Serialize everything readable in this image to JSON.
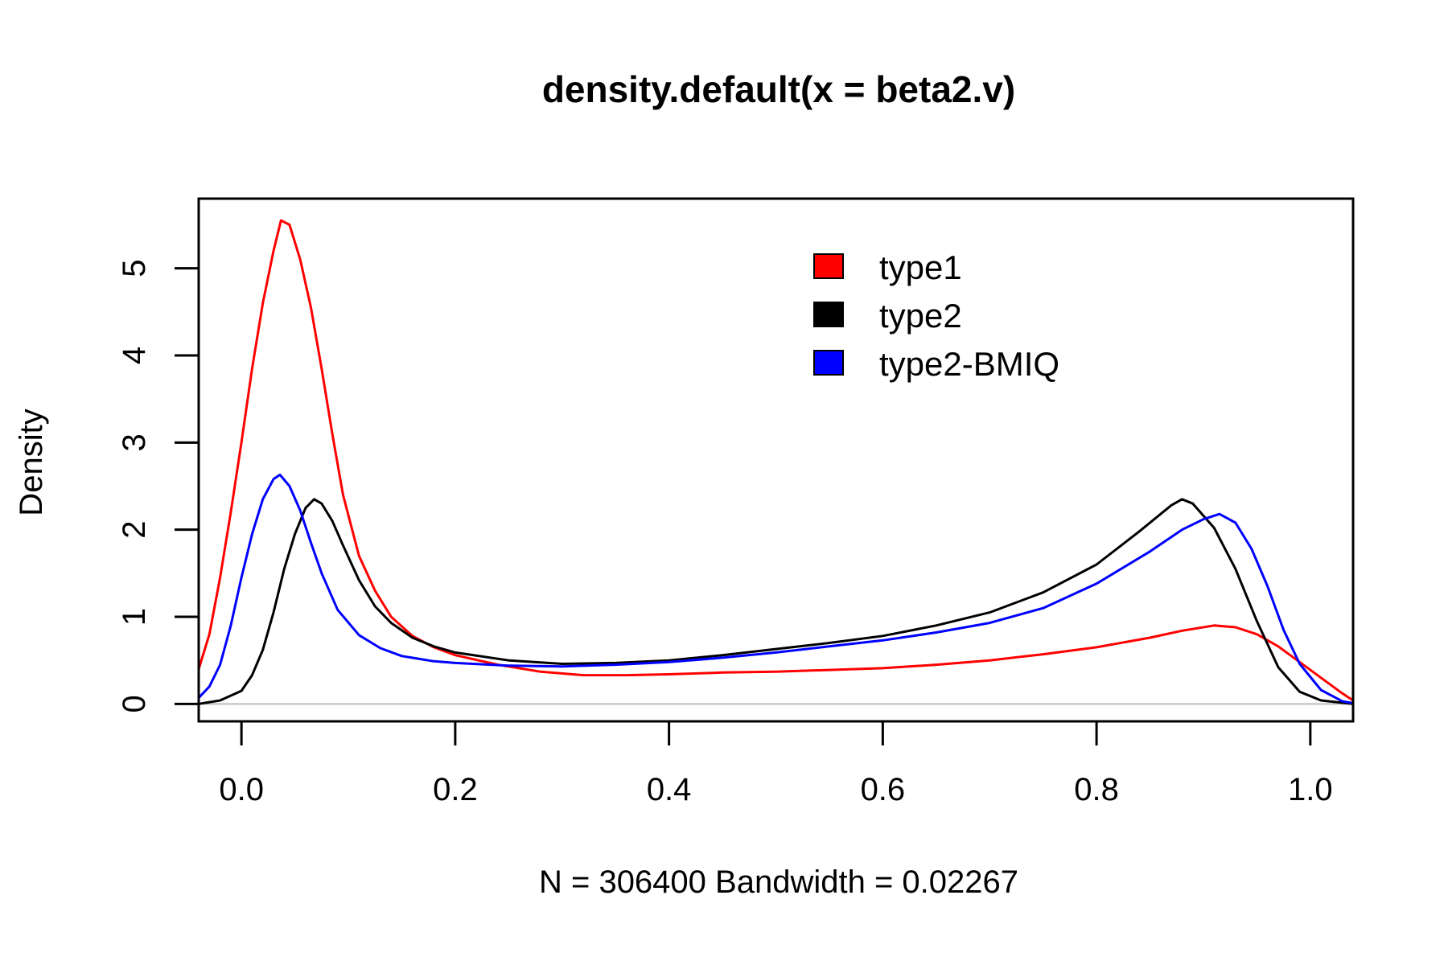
{
  "chart_data": {
    "type": "line",
    "title": "density.default(x = beta2.v)",
    "xlabel": "N = 306400   Bandwidth = 0.02267",
    "ylabel": "Density",
    "xlim": [
      -0.04,
      1.04
    ],
    "ylim": [
      -0.2,
      5.8
    ],
    "x_ticks": [
      0.0,
      0.2,
      0.4,
      0.6,
      0.8,
      1.0
    ],
    "x_tick_labels": [
      "0.0",
      "0.2",
      "0.4",
      "0.6",
      "0.8",
      "1.0"
    ],
    "y_ticks": [
      0,
      1,
      2,
      3,
      4,
      5
    ],
    "y_tick_labels": [
      "0",
      "1",
      "2",
      "3",
      "4",
      "5"
    ],
    "grid": false,
    "baseline": 0,
    "legend_position": "top-right",
    "series": [
      {
        "name": "type1",
        "color": "#ff0000",
        "points": [
          [
            -0.04,
            0.4
          ],
          [
            -0.03,
            0.8
          ],
          [
            -0.02,
            1.45
          ],
          [
            -0.01,
            2.2
          ],
          [
            0.0,
            3.0
          ],
          [
            0.01,
            3.85
          ],
          [
            0.02,
            4.6
          ],
          [
            0.03,
            5.2
          ],
          [
            0.037,
            5.55
          ],
          [
            0.045,
            5.5
          ],
          [
            0.055,
            5.1
          ],
          [
            0.065,
            4.55
          ],
          [
            0.075,
            3.85
          ],
          [
            0.085,
            3.1
          ],
          [
            0.095,
            2.4
          ],
          [
            0.11,
            1.7
          ],
          [
            0.125,
            1.3
          ],
          [
            0.14,
            1.0
          ],
          [
            0.16,
            0.78
          ],
          [
            0.18,
            0.65
          ],
          [
            0.2,
            0.56
          ],
          [
            0.24,
            0.45
          ],
          [
            0.28,
            0.37
          ],
          [
            0.32,
            0.33
          ],
          [
            0.36,
            0.33
          ],
          [
            0.4,
            0.34
          ],
          [
            0.45,
            0.36
          ],
          [
            0.5,
            0.37
          ],
          [
            0.55,
            0.39
          ],
          [
            0.6,
            0.41
          ],
          [
            0.65,
            0.45
          ],
          [
            0.7,
            0.5
          ],
          [
            0.75,
            0.57
          ],
          [
            0.8,
            0.65
          ],
          [
            0.85,
            0.76
          ],
          [
            0.88,
            0.84
          ],
          [
            0.91,
            0.9
          ],
          [
            0.93,
            0.88
          ],
          [
            0.95,
            0.8
          ],
          [
            0.97,
            0.66
          ],
          [
            0.99,
            0.48
          ],
          [
            1.01,
            0.3
          ],
          [
            1.03,
            0.12
          ],
          [
            1.04,
            0.04
          ]
        ]
      },
      {
        "name": "type2",
        "color": "#000000",
        "points": [
          [
            -0.04,
            0.0
          ],
          [
            -0.02,
            0.04
          ],
          [
            0.0,
            0.15
          ],
          [
            0.01,
            0.33
          ],
          [
            0.02,
            0.62
          ],
          [
            0.03,
            1.05
          ],
          [
            0.04,
            1.55
          ],
          [
            0.05,
            1.95
          ],
          [
            0.06,
            2.25
          ],
          [
            0.068,
            2.35
          ],
          [
            0.075,
            2.3
          ],
          [
            0.085,
            2.1
          ],
          [
            0.095,
            1.82
          ],
          [
            0.11,
            1.42
          ],
          [
            0.125,
            1.12
          ],
          [
            0.14,
            0.93
          ],
          [
            0.16,
            0.76
          ],
          [
            0.18,
            0.66
          ],
          [
            0.2,
            0.59
          ],
          [
            0.25,
            0.5
          ],
          [
            0.3,
            0.46
          ],
          [
            0.35,
            0.47
          ],
          [
            0.4,
            0.5
          ],
          [
            0.45,
            0.56
          ],
          [
            0.5,
            0.63
          ],
          [
            0.55,
            0.7
          ],
          [
            0.6,
            0.78
          ],
          [
            0.65,
            0.9
          ],
          [
            0.7,
            1.05
          ],
          [
            0.75,
            1.28
          ],
          [
            0.8,
            1.6
          ],
          [
            0.84,
            1.98
          ],
          [
            0.87,
            2.28
          ],
          [
            0.88,
            2.35
          ],
          [
            0.89,
            2.3
          ],
          [
            0.91,
            2.02
          ],
          [
            0.93,
            1.55
          ],
          [
            0.95,
            0.95
          ],
          [
            0.97,
            0.42
          ],
          [
            0.99,
            0.14
          ],
          [
            1.01,
            0.04
          ],
          [
            1.04,
            0.0
          ]
        ]
      },
      {
        "name": "type2-BMIQ",
        "color": "#0000ff",
        "points": [
          [
            -0.04,
            0.07
          ],
          [
            -0.03,
            0.2
          ],
          [
            -0.02,
            0.45
          ],
          [
            -0.01,
            0.9
          ],
          [
            0.0,
            1.45
          ],
          [
            0.01,
            1.95
          ],
          [
            0.02,
            2.35
          ],
          [
            0.03,
            2.58
          ],
          [
            0.036,
            2.63
          ],
          [
            0.045,
            2.5
          ],
          [
            0.055,
            2.22
          ],
          [
            0.065,
            1.85
          ],
          [
            0.075,
            1.5
          ],
          [
            0.09,
            1.08
          ],
          [
            0.11,
            0.79
          ],
          [
            0.13,
            0.64
          ],
          [
            0.15,
            0.55
          ],
          [
            0.18,
            0.49
          ],
          [
            0.2,
            0.47
          ],
          [
            0.25,
            0.44
          ],
          [
            0.3,
            0.43
          ],
          [
            0.35,
            0.45
          ],
          [
            0.4,
            0.48
          ],
          [
            0.45,
            0.53
          ],
          [
            0.5,
            0.59
          ],
          [
            0.55,
            0.66
          ],
          [
            0.6,
            0.73
          ],
          [
            0.65,
            0.82
          ],
          [
            0.7,
            0.93
          ],
          [
            0.75,
            1.1
          ],
          [
            0.8,
            1.38
          ],
          [
            0.85,
            1.75
          ],
          [
            0.88,
            2.0
          ],
          [
            0.9,
            2.12
          ],
          [
            0.915,
            2.18
          ],
          [
            0.93,
            2.08
          ],
          [
            0.945,
            1.78
          ],
          [
            0.96,
            1.35
          ],
          [
            0.975,
            0.85
          ],
          [
            0.99,
            0.46
          ],
          [
            1.01,
            0.16
          ],
          [
            1.03,
            0.03
          ],
          [
            1.04,
            0.01
          ]
        ]
      }
    ]
  }
}
